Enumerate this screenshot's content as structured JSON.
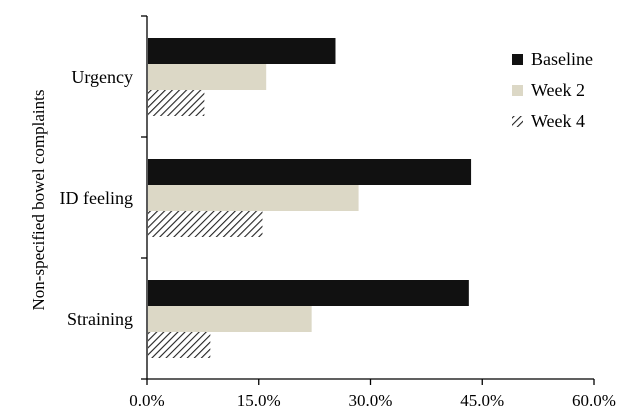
{
  "chart_data": {
    "type": "bar",
    "orientation": "horizontal",
    "title": "",
    "xlabel": "",
    "ylabel": "Non-specified bowel complaints",
    "categories": [
      "Urgency",
      "ID feeling",
      "Straining"
    ],
    "series": [
      {
        "name": "Baseline",
        "values": [
          25.3,
          43.5,
          43.2
        ],
        "color": "#111111",
        "pattern": "solid"
      },
      {
        "name": "Week 2",
        "values": [
          16.0,
          28.4,
          22.1
        ],
        "color": "#dcd8c6",
        "pattern": "solid"
      },
      {
        "name": "Week 4",
        "values": [
          7.7,
          15.5,
          8.5
        ],
        "color": "#222222",
        "pattern": "hatched"
      }
    ],
    "xlim": [
      0,
      60
    ],
    "xticks": [
      0,
      15,
      30,
      45,
      60
    ],
    "xtick_labels": [
      "0.0%",
      "15.0%",
      "30.0%",
      "45.0%",
      "60.0%"
    ],
    "grid": false,
    "legend_position": "top-right"
  }
}
